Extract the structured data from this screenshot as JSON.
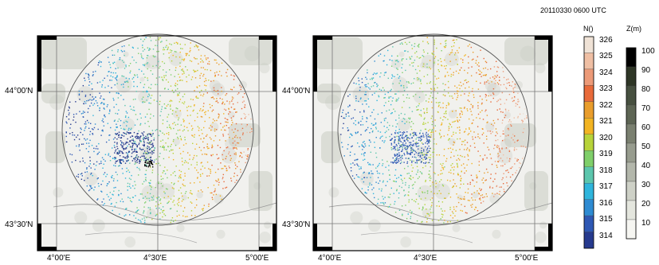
{
  "timestamp": "20110330 0600 UTC",
  "lat_labels": [
    "44°00'N",
    "43°30'N"
  ],
  "lon_labels": [
    "4°00'E",
    "4°30'E",
    "5°00'E"
  ],
  "colorbar_n": {
    "title": "N()",
    "labels": [
      "326",
      "325",
      "324",
      "323",
      "322",
      "321",
      "320",
      "319",
      "318",
      "317",
      "316",
      "315",
      "314"
    ],
    "colors": [
      "#efe2d6",
      "#efbfa4",
      "#ec9a78",
      "#e86a3a",
      "#e99d2c",
      "#f2b422",
      "#b7d33a",
      "#7fcf6a",
      "#5cc6ad",
      "#2fb5dc",
      "#2e8bd2",
      "#2e58b4",
      "#263a8e"
    ]
  },
  "colorbar_z": {
    "title": "Z(m)",
    "labels": [
      "100",
      "90",
      "80",
      "70",
      "60",
      "50",
      "40",
      "30",
      "20",
      "10"
    ],
    "colors": [
      "#000000",
      "#2e3626",
      "#475040",
      "#5d6554",
      "#7a8070",
      "#979c8e",
      "#b3b7ab",
      "#ced1c7",
      "#e4e6de",
      "#f6f6f2"
    ]
  },
  "map_colors": {
    "background": "#f1f1ee",
    "terrain": "#c9ccc3",
    "frame": "#000000"
  }
}
